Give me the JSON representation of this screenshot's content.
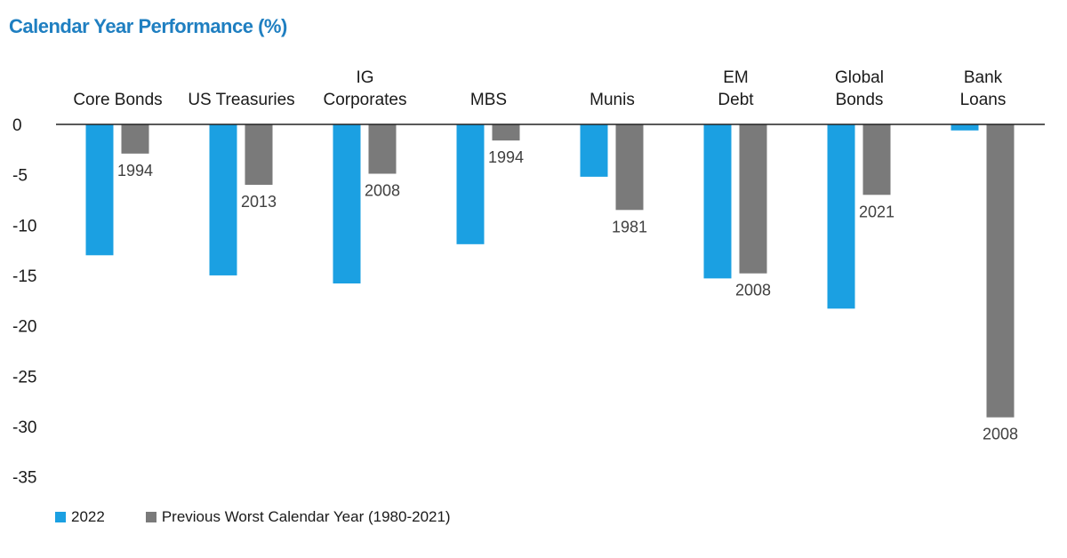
{
  "title": "Calendar Year Performance (%)",
  "colors": {
    "s2022": "#1ba0e2",
    "prevWorst": "#7a7a7a"
  },
  "chart_data": {
    "type": "bar",
    "title": "Calendar Year Performance (%)",
    "categories": [
      [
        "Core Bonds"
      ],
      [
        "US Treasuries"
      ],
      [
        "IG",
        "Corporates"
      ],
      [
        "MBS"
      ],
      [
        "Munis"
      ],
      [
        "EM",
        "Debt"
      ],
      [
        "Global",
        "Bonds"
      ],
      [
        "Bank",
        "Loans"
      ]
    ],
    "series": [
      {
        "name": "2022",
        "values": [
          -13.0,
          -15.0,
          -15.8,
          -11.9,
          -5.2,
          -15.3,
          -18.3,
          -0.6
        ]
      },
      {
        "name": "Previous Worst Calendar Year (1980-2021)",
        "values": [
          -2.9,
          -6.0,
          -4.9,
          -1.6,
          -8.5,
          -14.8,
          -7.0,
          -29.1
        ]
      }
    ],
    "previous_worst_years": [
      "1994",
      "2013",
      "2008",
      "1994",
      "1981",
      "2008",
      "2021",
      "2008"
    ],
    "ylim": [
      -35,
      0
    ],
    "yticks": [
      0,
      -5,
      -10,
      -15,
      -20,
      -25,
      -30,
      -35
    ],
    "legend_position": "bottom-left"
  }
}
